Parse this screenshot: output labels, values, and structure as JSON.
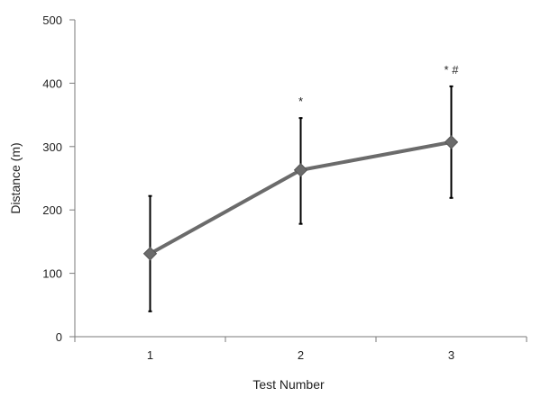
{
  "chart_data": {
    "type": "line",
    "title": "",
    "xlabel": "Test Number",
    "ylabel": "Distance (m)",
    "categories": [
      "1",
      "2",
      "3"
    ],
    "ylim": [
      0,
      500
    ],
    "yticks": [
      "0",
      "100",
      "200",
      "300",
      "400",
      "500"
    ],
    "grid": false,
    "legend": "none",
    "series": [
      {
        "values": [
          131,
          263,
          307
        ],
        "error_low": [
          40,
          178,
          219
        ],
        "error_high": [
          222,
          345,
          395
        ],
        "line_color": "#6b6b6b",
        "marker_color": "#6b6b6b",
        "error_bar_color": "#000000",
        "marker": "diamond"
      }
    ],
    "annotations": [
      "",
      "*",
      "* #"
    ]
  }
}
